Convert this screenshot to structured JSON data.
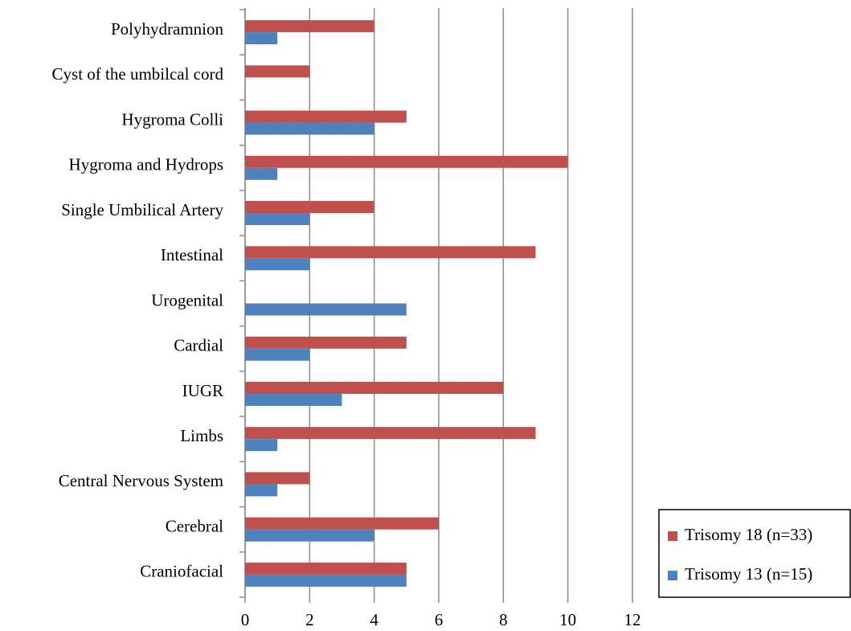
{
  "chart_data": {
    "type": "barh",
    "categories": [
      "Polyhydramnion",
      "Cyst of the umbilcal cord",
      "Hygroma Colli",
      "Hygroma and Hydrops",
      "Single Umbilical Artery",
      "Intestinal",
      "Urogenital",
      "Cardial",
      "IUGR",
      "Limbs",
      "Central Nervous System",
      "Cerebral",
      "Craniofacial"
    ],
    "series": [
      {
        "name": "Trisomy 18 (n=33)",
        "color": "#c0504d",
        "values": [
          4,
          2,
          5,
          10,
          4,
          9,
          0,
          5,
          8,
          9,
          2,
          6,
          5
        ]
      },
      {
        "name": "Trisomy 13 (n=15)",
        "color": "#4f81bd",
        "values": [
          1,
          0,
          4,
          1,
          2,
          2,
          5,
          2,
          3,
          1,
          1,
          4,
          5
        ]
      }
    ],
    "xlim": [
      0,
      12
    ],
    "xticks": [
      0,
      2,
      4,
      6,
      8,
      10,
      12
    ],
    "grid": true,
    "legend": "lower right"
  }
}
